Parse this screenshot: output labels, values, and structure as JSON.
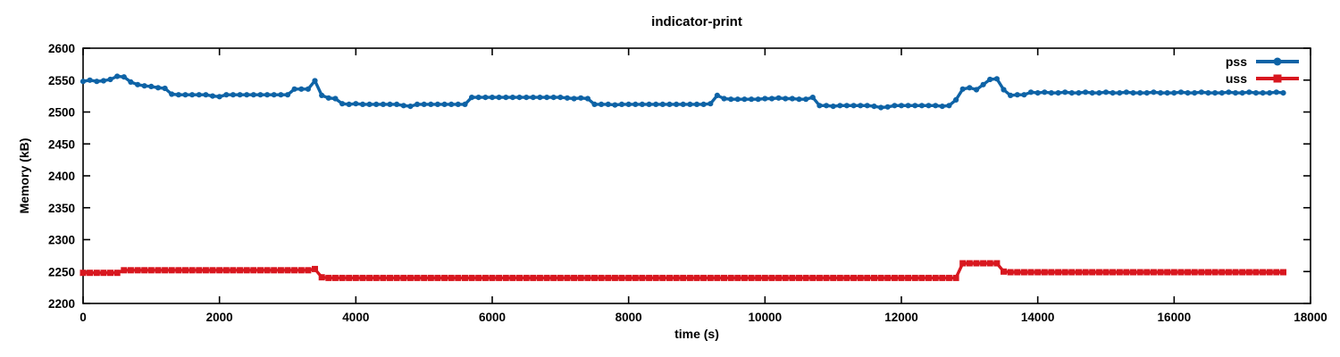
{
  "chart_data": {
    "type": "line",
    "title": "indicator-print",
    "xlabel": "time (s)",
    "ylabel": "Memory (kB)",
    "xlim": [
      0,
      18000
    ],
    "ylim": [
      2200,
      2600
    ],
    "xticks": [
      0,
      2000,
      4000,
      6000,
      8000,
      10000,
      12000,
      14000,
      16000,
      18000
    ],
    "yticks": [
      2200,
      2250,
      2300,
      2350,
      2400,
      2450,
      2500,
      2550,
      2600
    ],
    "grid": "off",
    "legend_position": "top-right-inside",
    "axis_color": "#000000",
    "background_color": "#ffffff",
    "x_start": 0,
    "x_step": 100,
    "series": [
      {
        "name": "pss",
        "color": "#0e63a6",
        "marker": "circle",
        "values": [
          2548,
          2550,
          2548,
          2549,
          2551,
          2556,
          2555,
          2547,
          2543,
          2541,
          2540,
          2538,
          2537,
          2528,
          2527,
          2527,
          2527,
          2527,
          2527,
          2525,
          2524,
          2527,
          2527,
          2527,
          2527,
          2527,
          2527,
          2527,
          2527,
          2527,
          2527,
          2536,
          2536,
          2536,
          2549,
          2526,
          2522,
          2521,
          2513,
          2512,
          2513,
          2512,
          2512,
          2512,
          2512,
          2512,
          2512,
          2510,
          2509,
          2512,
          2512,
          2512,
          2512,
          2512,
          2512,
          2512,
          2512,
          2523,
          2523,
          2523,
          2523,
          2523,
          2523,
          2523,
          2523,
          2523,
          2523,
          2523,
          2523,
          2523,
          2523,
          2522,
          2521,
          2522,
          2521,
          2512,
          2512,
          2512,
          2511,
          2512,
          2512,
          2512,
          2512,
          2512,
          2512,
          2512,
          2512,
          2512,
          2512,
          2512,
          2512,
          2512,
          2513,
          2526,
          2521,
          2520,
          2520,
          2520,
          2520,
          2520,
          2521,
          2521,
          2522,
          2521,
          2521,
          2520,
          2520,
          2523,
          2510,
          2510,
          2509,
          2510,
          2510,
          2510,
          2510,
          2510,
          2509,
          2507,
          2508,
          2510,
          2510,
          2510,
          2510,
          2510,
          2510,
          2510,
          2509,
          2510,
          2519,
          2536,
          2538,
          2535,
          2543,
          2551,
          2552,
          2535,
          2526,
          2527,
          2527,
          2531,
          2530,
          2531,
          2530,
          2530,
          2531,
          2530,
          2530,
          2531,
          2530,
          2530,
          2531,
          2530,
          2530,
          2531,
          2530,
          2530,
          2530,
          2531,
          2530,
          2530,
          2530,
          2531,
          2530,
          2530,
          2531,
          2530,
          2530,
          2530,
          2531,
          2530,
          2530,
          2531,
          2530,
          2530,
          2530,
          2531,
          2530
        ]
      },
      {
        "name": "uss",
        "color": "#d8171f",
        "marker": "square",
        "values": [
          2248,
          2248,
          2248,
          2248,
          2248,
          2248,
          2252,
          2252,
          2252,
          2252,
          2252,
          2252,
          2252,
          2252,
          2252,
          2252,
          2252,
          2252,
          2252,
          2252,
          2252,
          2252,
          2252,
          2252,
          2252,
          2252,
          2252,
          2252,
          2252,
          2252,
          2252,
          2252,
          2252,
          2252,
          2254,
          2241,
          2240,
          2240,
          2240,
          2240,
          2240,
          2240,
          2240,
          2240,
          2240,
          2240,
          2240,
          2240,
          2240,
          2240,
          2240,
          2240,
          2240,
          2240,
          2240,
          2240,
          2240,
          2240,
          2240,
          2240,
          2240,
          2240,
          2240,
          2240,
          2240,
          2240,
          2240,
          2240,
          2240,
          2240,
          2240,
          2240,
          2240,
          2240,
          2240,
          2240,
          2240,
          2240,
          2240,
          2240,
          2240,
          2240,
          2240,
          2240,
          2240,
          2240,
          2240,
          2240,
          2240,
          2240,
          2240,
          2240,
          2240,
          2240,
          2240,
          2240,
          2240,
          2240,
          2240,
          2240,
          2240,
          2240,
          2240,
          2240,
          2240,
          2240,
          2240,
          2240,
          2240,
          2240,
          2240,
          2240,
          2240,
          2240,
          2240,
          2240,
          2240,
          2240,
          2240,
          2240,
          2240,
          2240,
          2240,
          2240,
          2240,
          2240,
          2240,
          2240,
          2240,
          2263,
          2263,
          2263,
          2263,
          2263,
          2263,
          2250,
          2249,
          2249,
          2249,
          2249,
          2249,
          2249,
          2249,
          2249,
          2249,
          2249,
          2249,
          2249,
          2249,
          2249,
          2249,
          2249,
          2249,
          2249,
          2249,
          2249,
          2249,
          2249,
          2249,
          2249,
          2249,
          2249,
          2249,
          2249,
          2249,
          2249,
          2249,
          2249,
          2249,
          2249,
          2249,
          2249,
          2249,
          2249,
          2249,
          2249,
          2249
        ]
      }
    ]
  }
}
